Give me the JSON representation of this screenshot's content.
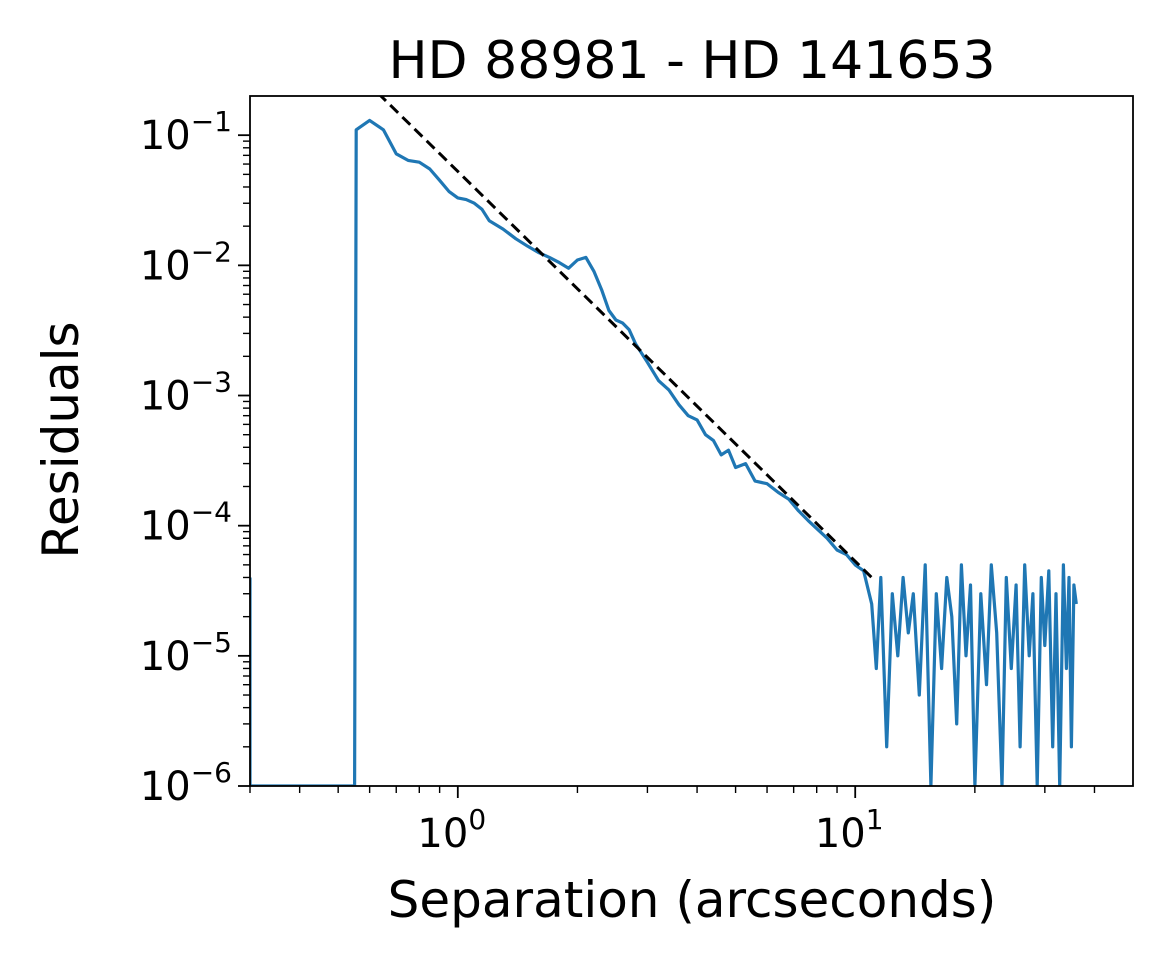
{
  "chart_data": {
    "type": "line",
    "title": "HD 88981 - HD 141653",
    "xlabel": "Separation (arcseconds)",
    "ylabel": "Residuals",
    "xscale": "log",
    "yscale": "log",
    "xlim": [
      0.3,
      50
    ],
    "ylim": [
      1e-06,
      0.2
    ],
    "grid": false,
    "legend": "none",
    "x_ticks": [
      {
        "value": 1,
        "base": "10",
        "exp": "0"
      },
      {
        "value": 10,
        "base": "10",
        "exp": "1"
      }
    ],
    "y_ticks": [
      {
        "value": 0.1,
        "base": "10",
        "exp": "−1"
      },
      {
        "value": 0.01,
        "base": "10",
        "exp": "−2"
      },
      {
        "value": 0.001,
        "base": "10",
        "exp": "−3"
      },
      {
        "value": 0.0001,
        "base": "10",
        "exp": "−4"
      },
      {
        "value": 1e-05,
        "base": "10",
        "exp": "−5"
      },
      {
        "value": 1e-06,
        "base": "10",
        "exp": "−6"
      }
    ],
    "series": [
      {
        "color": "#1f77b4",
        "style": "solid",
        "x": [
          0.3,
          0.3,
          0.55,
          0.555,
          0.6,
          0.65,
          0.7,
          0.75,
          0.8,
          0.85,
          0.9,
          0.95,
          1.0,
          1.05,
          1.1,
          1.15,
          1.2,
          1.3,
          1.4,
          1.5,
          1.6,
          1.7,
          1.8,
          1.9,
          2.0,
          2.1,
          2.2,
          2.3,
          2.4,
          2.5,
          2.6,
          2.7,
          2.8,
          3.0,
          3.2,
          3.4,
          3.6,
          3.8,
          4.0,
          4.2,
          4.4,
          4.6,
          4.8,
          5.0,
          5.3,
          5.6,
          6.0,
          6.4,
          6.8,
          7.2,
          7.6,
          8.0,
          8.5,
          9.0,
          9.5,
          10.0,
          10.5,
          11.0,
          11.3,
          11.6,
          12.0,
          12.4,
          12.8,
          13.2,
          13.6,
          14.0,
          14.5,
          15.0,
          15.5,
          16.0,
          16.5,
          17.0,
          17.5,
          18.0,
          18.5,
          19.0,
          19.5,
          20.0,
          20.7,
          21.4,
          22.0,
          22.7,
          23.4,
          24.0,
          24.7,
          25.4,
          26.0,
          26.7,
          27.4,
          28.0,
          28.7,
          29.4,
          30.0,
          30.7,
          31.4,
          32.0,
          32.7,
          33.4,
          34.0,
          34.5,
          35.0,
          35.5,
          36.0
        ],
        "y": [
          4e-05,
          1e-06,
          1e-06,
          0.11,
          0.13,
          0.11,
          0.072,
          0.064,
          0.062,
          0.055,
          0.045,
          0.037,
          0.033,
          0.032,
          0.03,
          0.027,
          0.022,
          0.019,
          0.016,
          0.014,
          0.0125,
          0.0115,
          0.0105,
          0.0095,
          0.011,
          0.0115,
          0.009,
          0.0065,
          0.0045,
          0.0038,
          0.0036,
          0.0032,
          0.0025,
          0.0018,
          0.0013,
          0.0011,
          0.00085,
          0.0007,
          0.00065,
          0.0005,
          0.00045,
          0.00035,
          0.00038,
          0.00028,
          0.0003,
          0.00022,
          0.00021,
          0.00018,
          0.00016,
          0.00013,
          0.00011,
          9.5e-05,
          8e-05,
          6.5e-05,
          6e-05,
          5e-05,
          4.5e-05,
          2.5e-05,
          8e-06,
          4e-05,
          2e-06,
          3e-05,
          1e-05,
          4e-05,
          1.5e-05,
          3e-05,
          5e-06,
          5e-05,
          1e-06,
          3e-05,
          8e-06,
          4e-05,
          2e-05,
          3e-06,
          5e-05,
          1e-05,
          3.5e-05,
          1e-06,
          3e-05,
          6e-06,
          5e-05,
          1.5e-05,
          1e-06,
          4e-05,
          8e-06,
          3.5e-05,
          2e-06,
          5e-05,
          1e-05,
          3e-05,
          1e-06,
          4e-05,
          1.2e-05,
          4.5e-05,
          2e-06,
          3e-05,
          1e-06,
          5e-05,
          8e-06,
          4e-05,
          2e-06,
          3.5e-05,
          2.5e-05
        ]
      },
      {
        "color": "#000000",
        "style": "dashed",
        "x": [
          0.63,
          11.0
        ],
        "y": [
          0.21,
          4e-05
        ]
      }
    ]
  }
}
